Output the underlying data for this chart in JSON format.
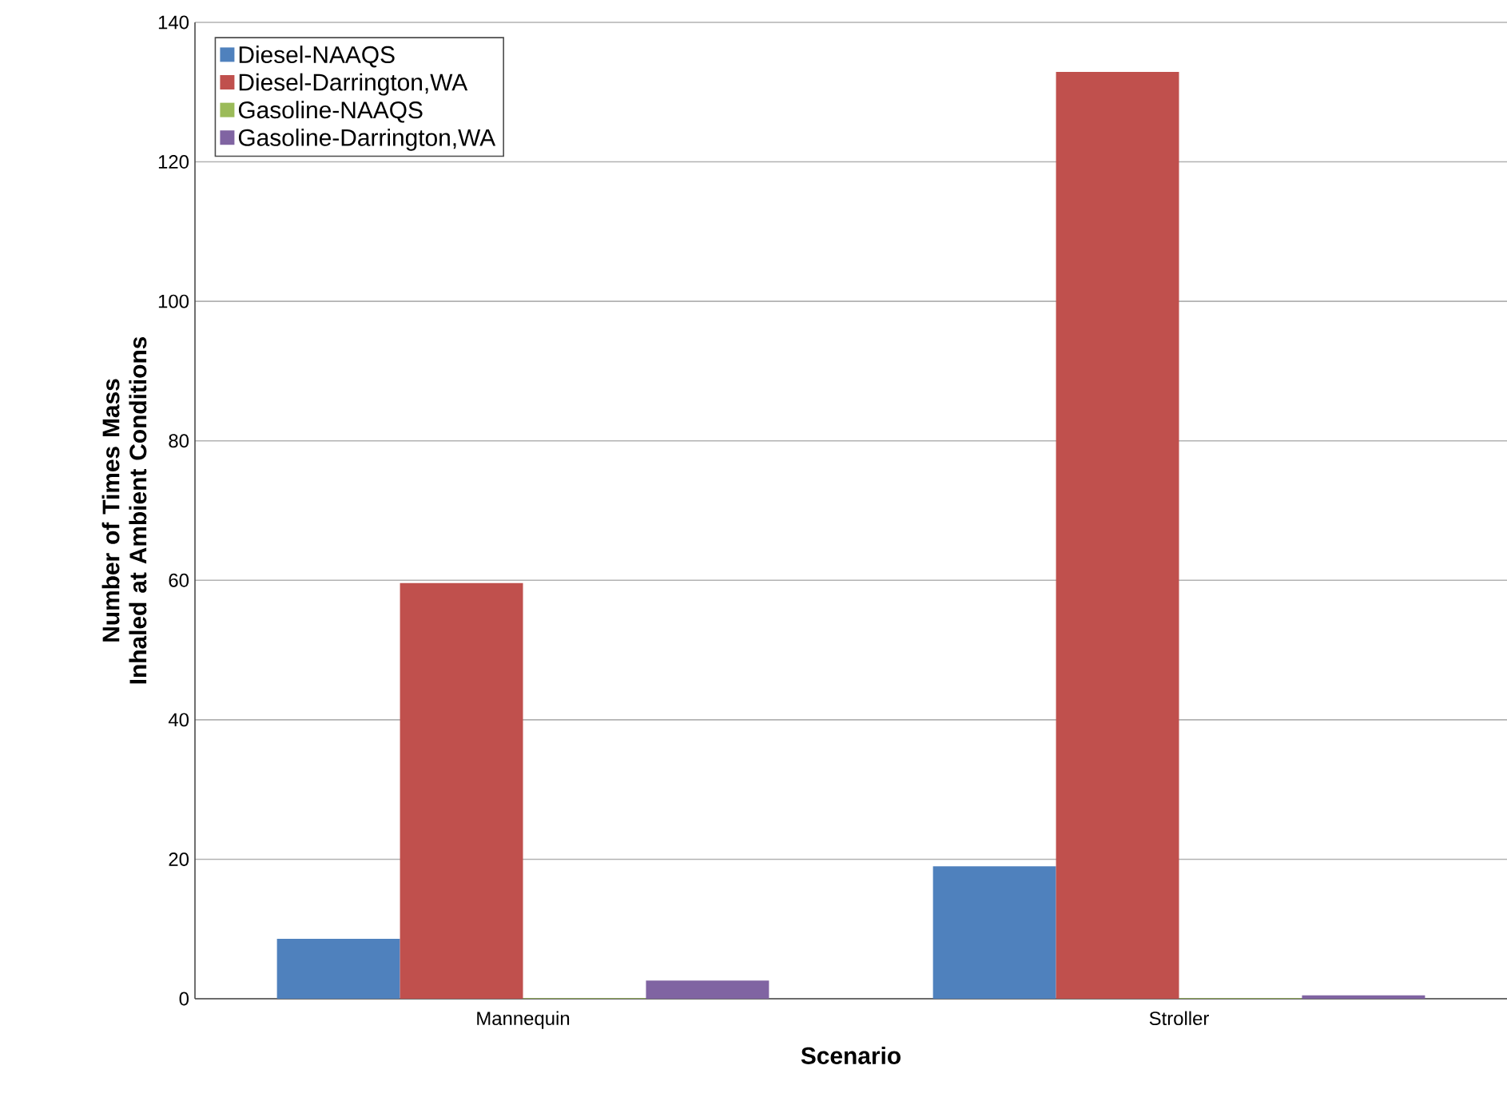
{
  "chart_data": {
    "type": "bar",
    "xlabel": "Scenario",
    "ylabel": "Number of Times Mass Inhaled at Ambient Conditions",
    "categories": [
      "Mannequin",
      "Stroller"
    ],
    "series": [
      {
        "name": "Diesel-NAAQS",
        "color": "#4f81bd",
        "values": [
          8.6,
          19
        ]
      },
      {
        "name": "Diesel-Darrington,WA",
        "color": "#c0504d",
        "values": [
          59.6,
          132.9
        ]
      },
      {
        "name": "Gasoline-NAAQS",
        "color": "#9bbb59",
        "values": [
          0.1,
          0.1
        ]
      },
      {
        "name": "Gasoline-Darrington,WA",
        "color": "#8064a2",
        "values": [
          2.6,
          0.5
        ]
      }
    ],
    "ylim": [
      0,
      140
    ],
    "yticks": [
      0,
      20,
      40,
      60,
      80,
      100,
      120,
      140
    ],
    "grid": "y",
    "legend": "top left"
  }
}
